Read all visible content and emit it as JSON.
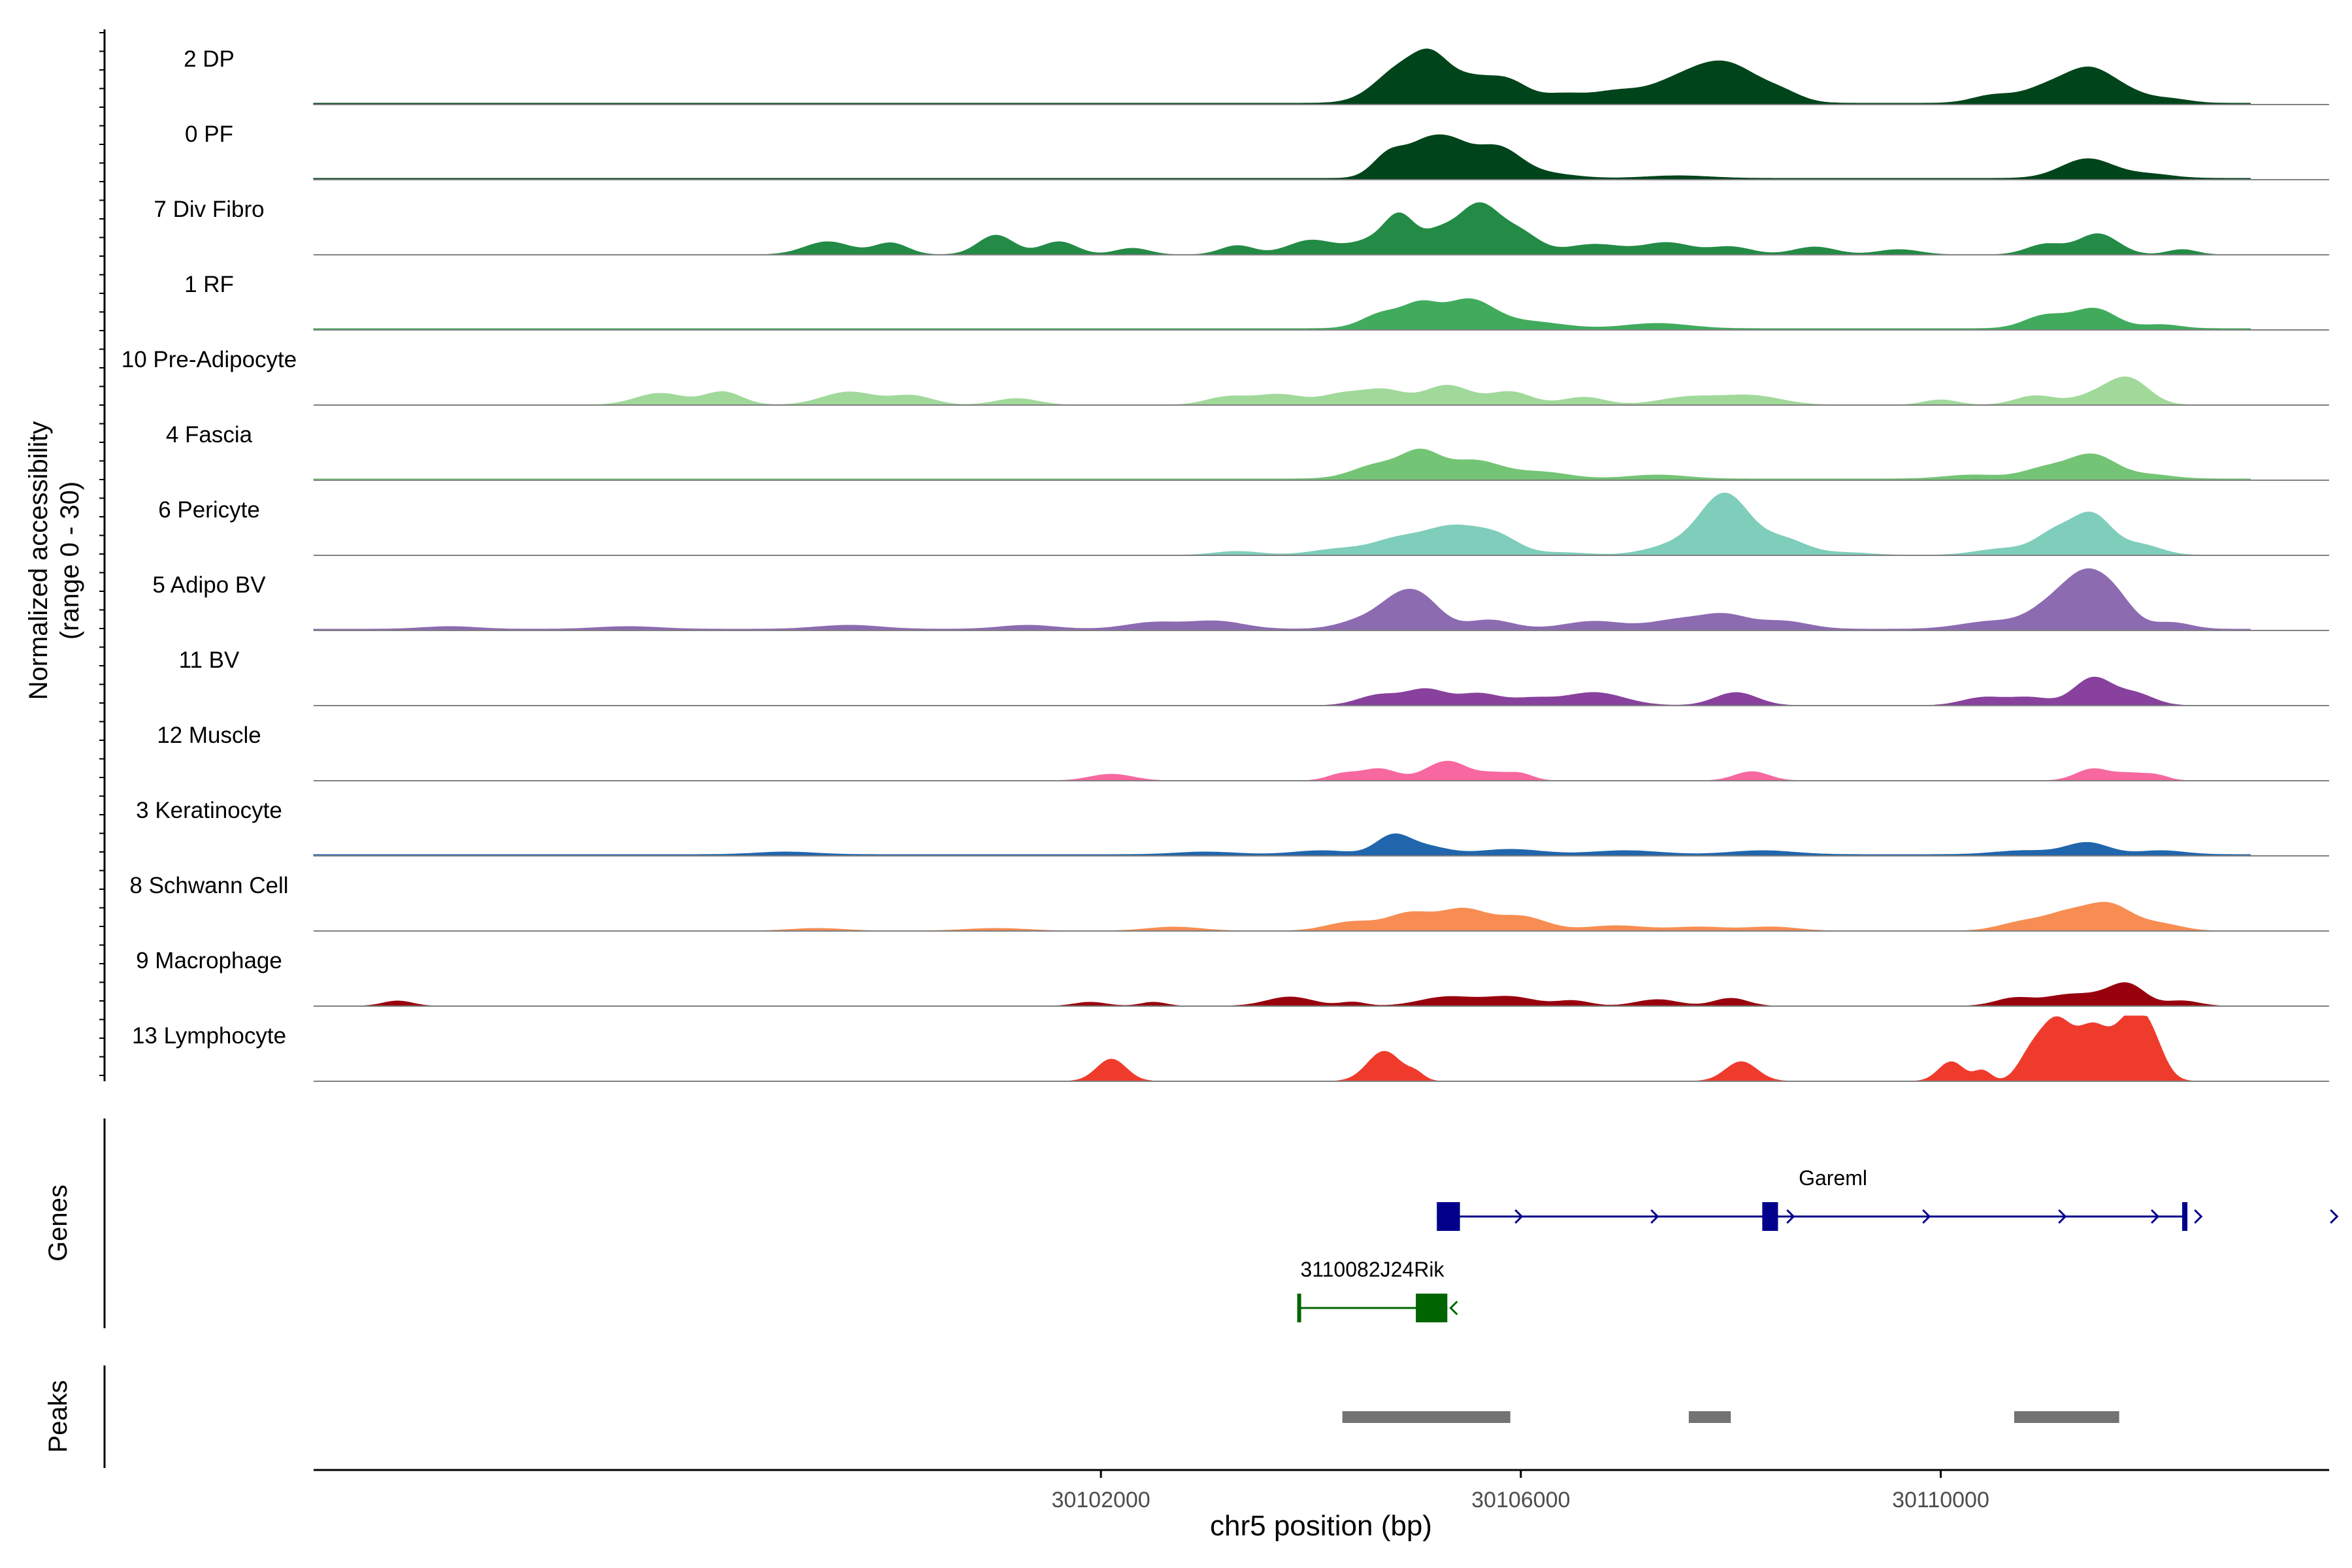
{
  "chart_data": {
    "type": "area",
    "ylabel_line1": "Normalized accessibility",
    "ylabel_line2": "(range 0 - 30)",
    "xlabel": "chr5 position (bp)",
    "xlim": [
      30094500,
      30113700
    ],
    "x_ticks": [
      {
        "value": 30102000,
        "label": "30102000"
      },
      {
        "value": 30106000,
        "label": "30106000"
      },
      {
        "value": 30110000,
        "label": "30110000"
      }
    ],
    "track_extent": [
      30094500,
      30112950
    ],
    "series": [
      {
        "name": "2 DP",
        "color": "#00441b",
        "base": 0.02,
        "peaks": [
          [
            30104900,
            0.58,
            260
          ],
          [
            30105150,
            0.3,
            150
          ],
          [
            30105500,
            0.38,
            260
          ],
          [
            30105900,
            0.25,
            180
          ],
          [
            30106400,
            0.14,
            220
          ],
          [
            30106900,
            0.16,
            220
          ],
          [
            30107400,
            0.2,
            260
          ],
          [
            30107930,
            0.62,
            330
          ],
          [
            30108500,
            0.1,
            180
          ],
          [
            30110500,
            0.12,
            200
          ],
          [
            30111000,
            0.22,
            220
          ],
          [
            30111420,
            0.5,
            230
          ],
          [
            30111800,
            0.12,
            200
          ],
          [
            30112200,
            0.06,
            180
          ]
        ]
      },
      {
        "name": "0 PF",
        "color": "#00441b",
        "base": 0.02,
        "peaks": [
          [
            30104760,
            0.4,
            160
          ],
          [
            30105050,
            0.3,
            150
          ],
          [
            30105300,
            0.52,
            190
          ],
          [
            30105770,
            0.48,
            230
          ],
          [
            30106300,
            0.06,
            240
          ],
          [
            30107500,
            0.04,
            300
          ],
          [
            30111400,
            0.3,
            250
          ],
          [
            30112000,
            0.06,
            220
          ]
        ]
      },
      {
        "name": "7 Div Fibro",
        "color": "#238b45",
        "base": 0.0,
        "peaks": [
          [
            30099400,
            0.2,
            220
          ],
          [
            30100000,
            0.18,
            160
          ],
          [
            30101000,
            0.3,
            170
          ],
          [
            30101600,
            0.2,
            170
          ],
          [
            30102300,
            0.1,
            160
          ],
          [
            30103300,
            0.14,
            160
          ],
          [
            30104000,
            0.22,
            220
          ],
          [
            30104600,
            0.22,
            220
          ],
          [
            30104850,
            0.5,
            140
          ],
          [
            30105200,
            0.3,
            160
          ],
          [
            30105600,
            0.76,
            200
          ],
          [
            30106000,
            0.3,
            180
          ],
          [
            30106700,
            0.16,
            280
          ],
          [
            30107400,
            0.18,
            230
          ],
          [
            30108000,
            0.12,
            200
          ],
          [
            30108800,
            0.12,
            200
          ],
          [
            30109600,
            0.08,
            200
          ],
          [
            30111000,
            0.16,
            180
          ],
          [
            30111500,
            0.32,
            190
          ],
          [
            30112300,
            0.08,
            140
          ]
        ]
      },
      {
        "name": "1 RF",
        "color": "#41ab5d",
        "base": 0.02,
        "peaks": [
          [
            30104700,
            0.24,
            200
          ],
          [
            30105050,
            0.3,
            160
          ],
          [
            30105500,
            0.44,
            240
          ],
          [
            30106100,
            0.1,
            300
          ],
          [
            30107300,
            0.08,
            300
          ],
          [
            30111000,
            0.2,
            200
          ],
          [
            30111470,
            0.3,
            200
          ],
          [
            30112100,
            0.06,
            180
          ]
        ]
      },
      {
        "name": "10 Pre-Adipocyte",
        "color": "#a1d99b",
        "base": 0.0,
        "peaks": [
          [
            30097800,
            0.18,
            230
          ],
          [
            30098400,
            0.2,
            180
          ],
          [
            30099600,
            0.2,
            250
          ],
          [
            30100200,
            0.14,
            200
          ],
          [
            30101200,
            0.1,
            200
          ],
          [
            30103200,
            0.12,
            200
          ],
          [
            30103700,
            0.16,
            230
          ],
          [
            30104300,
            0.16,
            200
          ],
          [
            30104700,
            0.22,
            200
          ],
          [
            30105300,
            0.3,
            220
          ],
          [
            30105900,
            0.2,
            200
          ],
          [
            30106600,
            0.12,
            200
          ],
          [
            30107600,
            0.12,
            280
          ],
          [
            30108200,
            0.14,
            280
          ],
          [
            30110000,
            0.08,
            160
          ],
          [
            30110900,
            0.14,
            190
          ],
          [
            30111500,
            0.16,
            220
          ],
          [
            30111800,
            0.36,
            190
          ]
        ]
      },
      {
        "name": "4 Fascia",
        "color": "#74c476",
        "base": 0.02,
        "peaks": [
          [
            30104650,
            0.22,
            240
          ],
          [
            30105050,
            0.36,
            180
          ],
          [
            30105550,
            0.28,
            260
          ],
          [
            30106200,
            0.1,
            260
          ],
          [
            30107300,
            0.06,
            280
          ],
          [
            30110300,
            0.06,
            260
          ],
          [
            30111000,
            0.16,
            220
          ],
          [
            30111450,
            0.36,
            220
          ],
          [
            30112000,
            0.06,
            220
          ]
        ]
      },
      {
        "name": "6 Pericyte",
        "color": "#7fcdbb",
        "base": 0.0,
        "peaks": [
          [
            30103300,
            0.06,
            220
          ],
          [
            30104300,
            0.1,
            280
          ],
          [
            30104800,
            0.18,
            220
          ],
          [
            30105350,
            0.44,
            300
          ],
          [
            30105800,
            0.2,
            200
          ],
          [
            30106400,
            0.04,
            240
          ],
          [
            30107500,
            0.16,
            280
          ],
          [
            30107950,
            0.9,
            230
          ],
          [
            30108500,
            0.24,
            220
          ],
          [
            30109100,
            0.04,
            240
          ],
          [
            30110600,
            0.1,
            260
          ],
          [
            30111100,
            0.34,
            190
          ],
          [
            30111450,
            0.58,
            180
          ],
          [
            30111900,
            0.16,
            200
          ]
        ]
      },
      {
        "name": "5 Adipo BV",
        "color": "#8c6bb1",
        "base": 0.02,
        "peaks": [
          [
            30095800,
            0.04,
            260
          ],
          [
            30097500,
            0.04,
            300
          ],
          [
            30099600,
            0.06,
            300
          ],
          [
            30101300,
            0.06,
            260
          ],
          [
            30102500,
            0.1,
            260
          ],
          [
            30103100,
            0.12,
            260
          ],
          [
            30104500,
            0.14,
            220
          ],
          [
            30104800,
            0.3,
            180
          ],
          [
            30105050,
            0.44,
            190
          ],
          [
            30105700,
            0.14,
            220
          ],
          [
            30106700,
            0.12,
            280
          ],
          [
            30107500,
            0.14,
            260
          ],
          [
            30107950,
            0.2,
            220
          ],
          [
            30108500,
            0.12,
            240
          ],
          [
            30110500,
            0.12,
            300
          ],
          [
            30111000,
            0.22,
            200
          ],
          [
            30111400,
            0.86,
            240
          ],
          [
            30111700,
            0.2,
            160
          ],
          [
            30112200,
            0.1,
            180
          ]
        ]
      },
      {
        "name": "11 BV",
        "color": "#88419d",
        "base": 0.0,
        "peaks": [
          [
            30104650,
            0.16,
            200
          ],
          [
            30105100,
            0.24,
            190
          ],
          [
            30105600,
            0.18,
            200
          ],
          [
            30106100,
            0.1,
            200
          ],
          [
            30106700,
            0.2,
            280
          ],
          [
            30108050,
            0.2,
            200
          ],
          [
            30110400,
            0.12,
            200
          ],
          [
            30110850,
            0.12,
            200
          ],
          [
            30111450,
            0.42,
            180
          ],
          [
            30111850,
            0.18,
            180
          ]
        ]
      },
      {
        "name": "12 Muscle",
        "color": "#f768a1",
        "base": 0.0,
        "peaks": [
          [
            30102100,
            0.1,
            200
          ],
          [
            30104300,
            0.1,
            140
          ],
          [
            30104650,
            0.18,
            170
          ],
          [
            30105300,
            0.3,
            200
          ],
          [
            30105750,
            0.1,
            140
          ],
          [
            30106000,
            0.1,
            120
          ],
          [
            30108200,
            0.14,
            160
          ],
          [
            30111450,
            0.18,
            160
          ],
          [
            30111800,
            0.1,
            140
          ],
          [
            30112050,
            0.08,
            120
          ]
        ]
      },
      {
        "name": "3 Keratinocyte",
        "color": "#2166ac",
        "base": 0.02,
        "peaks": [
          [
            30099000,
            0.04,
            280
          ],
          [
            30103000,
            0.04,
            280
          ],
          [
            30104100,
            0.06,
            260
          ],
          [
            30104780,
            0.28,
            160
          ],
          [
            30105100,
            0.12,
            200
          ],
          [
            30105900,
            0.08,
            300
          ],
          [
            30107000,
            0.06,
            320
          ],
          [
            30108300,
            0.06,
            300
          ],
          [
            30110800,
            0.06,
            280
          ],
          [
            30111400,
            0.18,
            200
          ],
          [
            30112100,
            0.06,
            220
          ]
        ]
      },
      {
        "name": "8 Schwann Cell",
        "color": "#f78d52",
        "base": 0.0,
        "peaks": [
          [
            30099300,
            0.04,
            260
          ],
          [
            30101000,
            0.04,
            300
          ],
          [
            30102700,
            0.06,
            260
          ],
          [
            30104400,
            0.14,
            240
          ],
          [
            30104950,
            0.26,
            210
          ],
          [
            30105450,
            0.32,
            220
          ],
          [
            30106000,
            0.22,
            240
          ],
          [
            30106900,
            0.08,
            280
          ],
          [
            30107700,
            0.06,
            280
          ],
          [
            30108400,
            0.06,
            240
          ],
          [
            30110800,
            0.14,
            230
          ],
          [
            30111200,
            0.22,
            200
          ],
          [
            30111600,
            0.4,
            220
          ],
          [
            30112100,
            0.1,
            200
          ]
        ]
      },
      {
        "name": "9 Macrophage",
        "color": "#99000d",
        "base": 0.0,
        "peaks": [
          [
            30095300,
            0.08,
            140
          ],
          [
            30101900,
            0.06,
            150
          ],
          [
            30102500,
            0.06,
            120
          ],
          [
            30103800,
            0.14,
            220
          ],
          [
            30104400,
            0.06,
            120
          ],
          [
            30105300,
            0.14,
            260
          ],
          [
            30105900,
            0.14,
            240
          ],
          [
            30106500,
            0.08,
            160
          ],
          [
            30107300,
            0.1,
            200
          ],
          [
            30108000,
            0.12,
            160
          ],
          [
            30110700,
            0.12,
            180
          ],
          [
            30111200,
            0.16,
            220
          ],
          [
            30111600,
            0.14,
            200
          ],
          [
            30111800,
            0.26,
            160
          ],
          [
            30112300,
            0.08,
            160
          ]
        ]
      },
      {
        "name": "13 Lymphocyte",
        "color": "#ef3b2c",
        "base": 0.0,
        "peaks": [
          [
            30102100,
            0.34,
            140
          ],
          [
            30104700,
            0.46,
            160
          ],
          [
            30105000,
            0.1,
            80
          ],
          [
            30108100,
            0.3,
            150
          ],
          [
            30110100,
            0.3,
            120
          ],
          [
            30110400,
            0.16,
            80
          ],
          [
            30110850,
            0.34,
            120
          ],
          [
            30111100,
            0.9,
            150
          ],
          [
            30111450,
            0.78,
            150
          ],
          [
            30111800,
            0.86,
            150
          ],
          [
            30112000,
            0.54,
            130
          ]
        ]
      }
    ],
    "genes": [
      {
        "name": "Gareml",
        "color": "#00008b",
        "strand": "+",
        "start": 30105200,
        "end": 30112350,
        "exons": [
          [
            30105200,
            30105420
          ],
          [
            30108300,
            30108450
          ],
          [
            30112300,
            30112350
          ]
        ]
      },
      {
        "name": "3110082J24Rik",
        "color": "#006400",
        "strand": "-",
        "start": 30103870,
        "end": 30105300,
        "exons": [
          [
            30103870,
            30103890
          ],
          [
            30105000,
            30105300
          ]
        ]
      }
    ],
    "peaks_track": [
      [
        30104300,
        30105900
      ],
      [
        30107600,
        30108000
      ],
      [
        30110700,
        30111700
      ]
    ],
    "panel_labels": {
      "genes": "Genes",
      "peaks": "Peaks"
    },
    "colors": {
      "track_baseline": "#808080",
      "peak_bar": "#737373",
      "axis": "#000000"
    }
  }
}
